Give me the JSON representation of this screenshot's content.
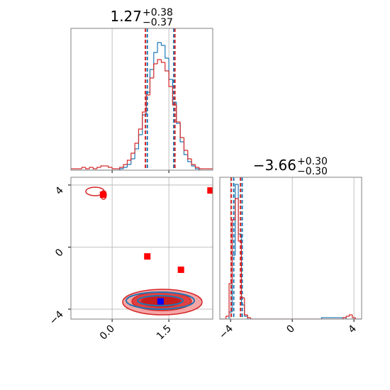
{
  "chart_data": [
    {
      "type": "histogram",
      "title": "1.27",
      "title_sup": "+0.38",
      "title_sub": "−0.37",
      "bins": [
        -1.1,
        -1.0,
        -0.9,
        -0.8,
        -0.7,
        -0.6,
        -0.5,
        -0.4,
        -0.3,
        -0.2,
        -0.1,
        0.0,
        0.1,
        0.2,
        0.3,
        0.4,
        0.5,
        0.6,
        0.7,
        0.8,
        0.9,
        1.0,
        1.1,
        1.2,
        1.3,
        1.4,
        1.5,
        1.6,
        1.7,
        1.8,
        1.9,
        2.0,
        2.1,
        2.2,
        2.3,
        2.4,
        2.5,
        2.6,
        2.7
      ],
      "series": [
        {
          "color": "#1f77b4",
          "quantiles": [
            0.93,
            1.63
          ],
          "values": [
            0,
            0,
            0,
            0,
            0,
            0,
            0,
            0,
            0,
            0,
            0,
            0,
            0,
            0.01,
            0.02,
            0.04,
            0.08,
            0.15,
            0.25,
            0.39,
            0.55,
            0.71,
            0.83,
            0.9,
            0.88,
            0.79,
            0.64,
            0.48,
            0.33,
            0.2,
            0.11,
            0.06,
            0.03,
            0.01,
            0,
            0,
            0,
            0
          ]
        },
        {
          "color": "#d62728",
          "quantiles": [
            0.88,
            1.66
          ],
          "values": [
            0.01,
            0.01,
            0.01,
            0.02,
            0.01,
            0.02,
            0.01,
            0.02,
            0.03,
            0.03,
            0.02,
            0.01,
            0.01,
            0.02,
            0.04,
            0.07,
            0.12,
            0.19,
            0.29,
            0.41,
            0.53,
            0.65,
            0.75,
            0.78,
            0.76,
            0.7,
            0.59,
            0.46,
            0.34,
            0.23,
            0.14,
            0.08,
            0.04,
            0.02,
            0.01,
            0.01,
            0.01,
            0.01
          ]
        }
      ],
      "xlim": [
        -1.09,
        2.66
      ],
      "ylim": [
        0,
        1
      ],
      "xticks": [
        0,
        1.5
      ],
      "grid": true
    },
    {
      "type": "scatter",
      "series": [
        {
          "color": "#ff0000",
          "x": [
            -0.24,
            0.93,
            1.82,
            2.6
          ],
          "y": [
            3.38,
            -0.6,
            -1.46,
            3.65
          ]
        },
        {
          "color": "#0000ff",
          "x": [
            1.28
          ],
          "y": [
            -3.5
          ]
        }
      ],
      "xlim": [
        -1.09,
        2.66
      ],
      "ylim": [
        -4.64,
        4.5
      ],
      "xticks": [
        {
          "value": 0,
          "label": "0.0"
        },
        1.5
      ],
      "yticks": [
        4,
        0,
        {
          "value": -4,
          "label": "−4"
        }
      ],
      "grid": true
    },
    {
      "type": "histogram",
      "title": "−3.66",
      "title_sup": "+0.30",
      "title_sub": "−0.30",
      "bins": [
        -4.7,
        -4.5,
        -4.3,
        -4.1,
        -3.9,
        -3.7,
        -3.5,
        -3.3,
        -3.1,
        -2.9,
        -2.7,
        -2.5,
        -2.3,
        -2.1,
        -1.9,
        -1.7,
        -1.5,
        -1.3,
        -1.1,
        -0.9,
        -0.7,
        -0.5,
        -0.3,
        -0.1,
        0.1,
        0.3,
        0.5,
        0.7,
        0.9,
        1.1,
        1.3,
        1.5,
        1.7,
        1.9,
        2.1,
        2.3,
        2.5,
        2.7,
        2.9,
        3.1,
        3.3,
        3.5,
        3.7,
        3.9,
        4.1,
        4.3,
        4.5
      ],
      "series": [
        {
          "color": "#1f77b4",
          "quantiles": [
            -3.8,
            -3.25
          ],
          "values": [
            0,
            0,
            0,
            0.05,
            0.45,
            0.95,
            0.6,
            0.1,
            0.02,
            0,
            0,
            0,
            0,
            0,
            0,
            0,
            0,
            0,
            0,
            0,
            0,
            0,
            0,
            0,
            0,
            0,
            0,
            0,
            0,
            0,
            0,
            0,
            0,
            0.01,
            0.01,
            0.01,
            0.01,
            0.01,
            0.01,
            0.01,
            0.01,
            0,
            0,
            0,
            0,
            0
          ]
        },
        {
          "color": "#d62728",
          "quantiles": [
            -3.96,
            -3.36
          ],
          "values": [
            0,
            0,
            0.02,
            0.25,
            0.7,
            0.85,
            0.55,
            0.15,
            0.03,
            0.01,
            0,
            0,
            0,
            0,
            0,
            0,
            0,
            0,
            0,
            0,
            0,
            0,
            0,
            0,
            0,
            0,
            0,
            0,
            0,
            0,
            0,
            0,
            0,
            0,
            0,
            0,
            0,
            0,
            0,
            0,
            0.01,
            0.02,
            0.03,
            0.01,
            0,
            0
          ]
        }
      ],
      "xlim": [
        -4.7,
        4.5
      ],
      "ylim": [
        0,
        1
      ],
      "xticks": [
        {
          "value": -4,
          "label": "−4"
        },
        0,
        4
      ],
      "grid": true
    }
  ]
}
